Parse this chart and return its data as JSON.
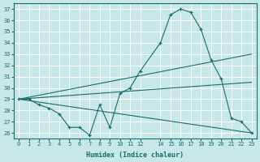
{
  "xlabel": "Humidex (Indice chaleur)",
  "bg_color": "#c8e8e8",
  "line_color": "#1a6b6b",
  "grid_color": "#ffffff",
  "xlim": [
    -0.5,
    23.5
  ],
  "ylim": [
    25.5,
    37.5
  ],
  "xticks": [
    0,
    1,
    2,
    3,
    4,
    5,
    6,
    7,
    8,
    9,
    10,
    11,
    12,
    14,
    15,
    16,
    17,
    18,
    19,
    20,
    21,
    22,
    23
  ],
  "yticks": [
    26,
    27,
    28,
    29,
    30,
    31,
    32,
    33,
    34,
    35,
    36,
    37
  ],
  "main_curve": {
    "x": [
      0,
      1,
      2,
      3,
      4,
      5,
      6,
      7,
      8,
      9,
      10,
      11,
      12,
      14,
      15,
      16,
      17,
      18,
      19,
      20,
      21,
      22,
      23
    ],
    "y": [
      29.0,
      29.0,
      28.5,
      28.2,
      27.7,
      26.5,
      26.5,
      25.8,
      28.5,
      26.5,
      29.5,
      30.0,
      31.5,
      34.0,
      36.5,
      37.0,
      36.7,
      35.2,
      32.5,
      30.8,
      27.3,
      27.0,
      26.0
    ]
  },
  "fan_lines": [
    {
      "x": [
        0,
        23
      ],
      "y": [
        29.0,
        33.0
      ]
    },
    {
      "x": [
        0,
        23
      ],
      "y": [
        29.0,
        30.5
      ]
    },
    {
      "x": [
        0,
        23
      ],
      "y": [
        29.0,
        26.0
      ]
    }
  ]
}
